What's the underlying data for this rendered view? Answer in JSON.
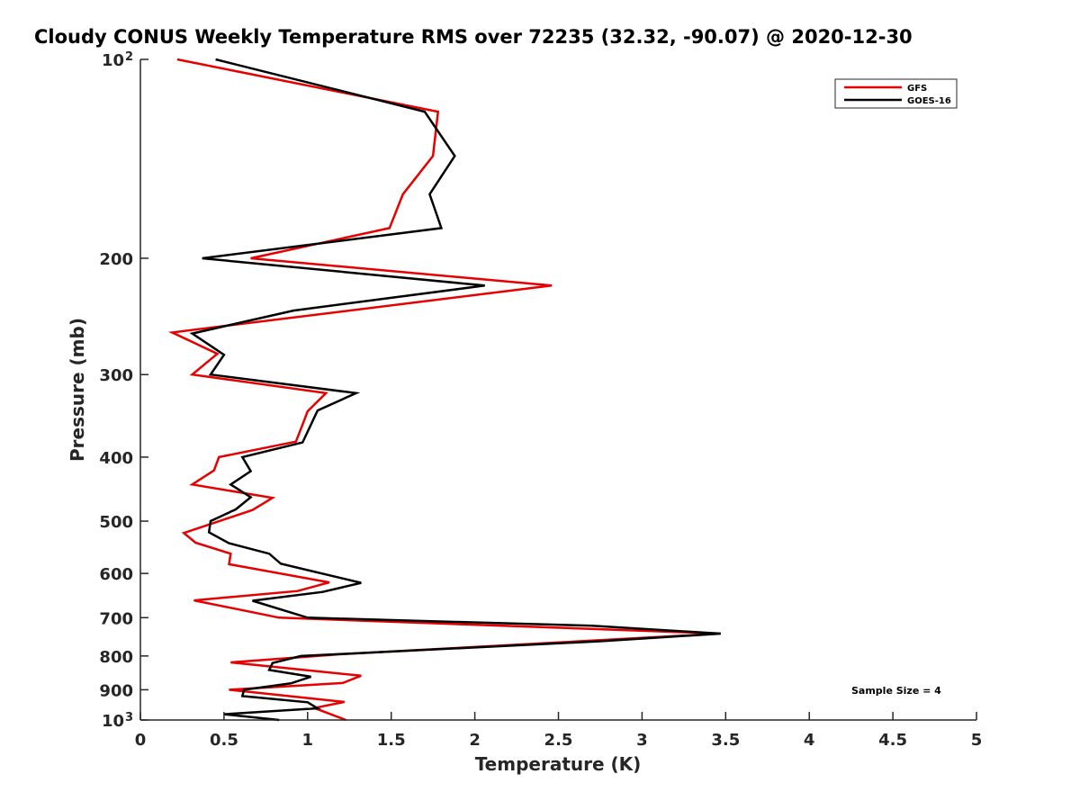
{
  "chart_data": {
    "type": "line",
    "title": "Cloudy CONUS Weekly Temperature RMS over 72235 (32.32, -90.07) @ 2020-12-30",
    "xlabel": "Temperature (K)",
    "ylabel": "Pressure (mb)",
    "xlim": [
      0,
      5
    ],
    "ylim": [
      100,
      1000
    ],
    "yscale": "log",
    "y_reversed": true,
    "xticks": [
      "0",
      "0.5",
      "1",
      "1.5",
      "2",
      "2.5",
      "3",
      "3.5",
      "4",
      "4.5",
      "5"
    ],
    "xtick_values": [
      0,
      0.5,
      1,
      1.5,
      2,
      2.5,
      3,
      3.5,
      4,
      4.5,
      5
    ],
    "yticks": [
      {
        "value": 100,
        "base": "10",
        "exp": "2"
      },
      {
        "value": 200,
        "label": "200"
      },
      {
        "value": 300,
        "label": "300"
      },
      {
        "value": 400,
        "label": "400"
      },
      {
        "value": 500,
        "label": "500"
      },
      {
        "value": 600,
        "label": "600"
      },
      {
        "value": 700,
        "label": "700"
      },
      {
        "value": 800,
        "label": "800"
      },
      {
        "value": 900,
        "label": "900"
      },
      {
        "value": 1000,
        "base": "10",
        "exp": "3"
      }
    ],
    "grid": false,
    "legend_position": "top-right",
    "annotation": "Sample Size = 4",
    "series": [
      {
        "name": "GFS",
        "color": "#e60000",
        "points": [
          [
            0.22,
            100
          ],
          [
            1.78,
            120
          ],
          [
            1.75,
            140
          ],
          [
            1.57,
            160
          ],
          [
            1.49,
            180
          ],
          [
            0.66,
            200
          ],
          [
            2.46,
            220
          ],
          [
            0.19,
            259
          ],
          [
            0.46,
            279
          ],
          [
            0.31,
            300
          ],
          [
            1.11,
            320
          ],
          [
            1.0,
            341
          ],
          [
            0.97,
            357
          ],
          [
            0.93,
            379
          ],
          [
            0.47,
            400
          ],
          [
            0.44,
            419
          ],
          [
            0.31,
            440
          ],
          [
            0.79,
            461
          ],
          [
            0.67,
            481
          ],
          [
            0.26,
            521
          ],
          [
            0.33,
            539
          ],
          [
            0.54,
            560
          ],
          [
            0.53,
            581
          ],
          [
            1.13,
            619
          ],
          [
            0.94,
            638
          ],
          [
            0.32,
            659
          ],
          [
            0.83,
            700
          ],
          [
            3.47,
            740
          ],
          [
            1.2,
            795
          ],
          [
            0.54,
            818
          ],
          [
            1.32,
            857
          ],
          [
            1.21,
            879
          ],
          [
            0.53,
            900
          ],
          [
            1.22,
            939
          ],
          [
            1.04,
            959
          ],
          [
            1.23,
            1000
          ]
        ]
      },
      {
        "name": "GOES-16",
        "color": "#000000",
        "points": [
          [
            0.45,
            100
          ],
          [
            1.7,
            120
          ],
          [
            1.88,
            140
          ],
          [
            1.73,
            160
          ],
          [
            1.8,
            180
          ],
          [
            0.37,
            200
          ],
          [
            2.06,
            220
          ],
          [
            0.915,
            240
          ],
          [
            0.31,
            260
          ],
          [
            0.5,
            280
          ],
          [
            0.42,
            300
          ],
          [
            1.29,
            320
          ],
          [
            1.06,
            340
          ],
          [
            0.97,
            380
          ],
          [
            0.61,
            400
          ],
          [
            0.66,
            420
          ],
          [
            0.54,
            440
          ],
          [
            0.66,
            460
          ],
          [
            0.57,
            480
          ],
          [
            0.42,
            500
          ],
          [
            0.41,
            520
          ],
          [
            0.53,
            540
          ],
          [
            0.77,
            560
          ],
          [
            0.84,
            580
          ],
          [
            1.32,
            620
          ],
          [
            1.09,
            640
          ],
          [
            0.67,
            660
          ],
          [
            1.0,
            700
          ],
          [
            2.7,
            720
          ],
          [
            3.47,
            740
          ],
          [
            2.75,
            760
          ],
          [
            0.96,
            800
          ],
          [
            0.79,
            820
          ],
          [
            0.77,
            840
          ],
          [
            1.02,
            860
          ],
          [
            0.9,
            880
          ],
          [
            0.62,
            900
          ],
          [
            0.61,
            920
          ],
          [
            1.0,
            940
          ],
          [
            1.06,
            960
          ],
          [
            0.5,
            980
          ],
          [
            0.83,
            1000
          ]
        ]
      }
    ]
  }
}
